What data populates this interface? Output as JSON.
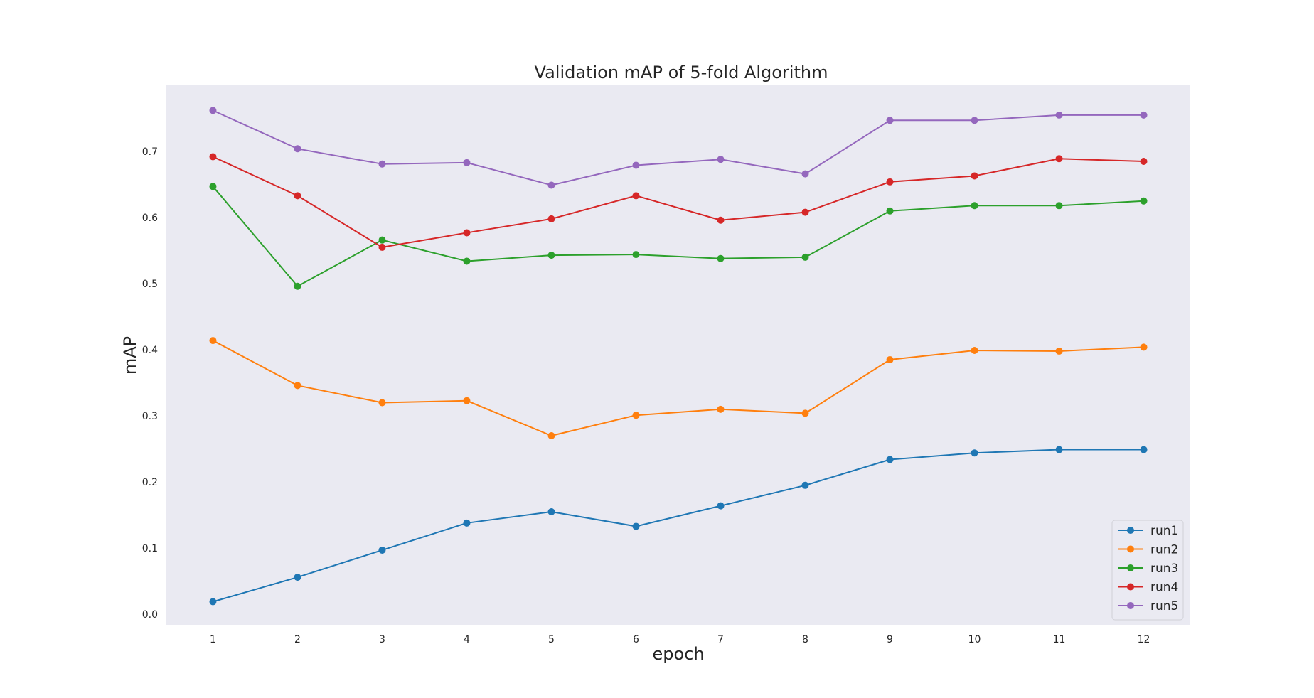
{
  "chart_data": {
    "type": "line",
    "title": "Validation mAP of 5-fold Algorithm",
    "xlabel": "epoch",
    "ylabel": "mAP",
    "x": [
      1,
      2,
      3,
      4,
      5,
      6,
      7,
      8,
      9,
      10,
      11,
      12
    ],
    "x_tick_labels": [
      "1",
      "2",
      "3",
      "4",
      "5",
      "6",
      "7",
      "8",
      "9",
      "10",
      "11",
      "12"
    ],
    "y_ticks": [
      0.0,
      0.1,
      0.2,
      0.3,
      0.4,
      0.5,
      0.6,
      0.7
    ],
    "y_tick_labels": [
      "0.0",
      "0.1",
      "0.2",
      "0.3",
      "0.4",
      "0.5",
      "0.6",
      "0.7"
    ],
    "xlim": [
      0.45,
      12.55
    ],
    "ylim": [
      -0.017,
      0.8
    ],
    "grid": false,
    "legend_position": "bottom-right",
    "background_color": "#eaeaf2",
    "series": [
      {
        "name": "run1",
        "color": "#1f77b4",
        "values": [
          0.019,
          0.056,
          0.097,
          0.138,
          0.155,
          0.133,
          0.164,
          0.195,
          0.234,
          0.244,
          0.249,
          0.249
        ]
      },
      {
        "name": "run2",
        "color": "#ff7f0e",
        "values": [
          0.414,
          0.346,
          0.32,
          0.323,
          0.27,
          0.301,
          0.31,
          0.304,
          0.385,
          0.399,
          0.398,
          0.404
        ]
      },
      {
        "name": "run3",
        "color": "#2ca02c",
        "values": [
          0.647,
          0.496,
          0.566,
          0.534,
          0.543,
          0.544,
          0.538,
          0.54,
          0.61,
          0.618,
          0.618,
          0.625
        ]
      },
      {
        "name": "run4",
        "color": "#d62728",
        "values": [
          0.692,
          0.633,
          0.555,
          0.577,
          0.598,
          0.633,
          0.596,
          0.608,
          0.654,
          0.663,
          0.689,
          0.685
        ]
      },
      {
        "name": "run5",
        "color": "#9467bd",
        "values": [
          0.762,
          0.704,
          0.681,
          0.683,
          0.649,
          0.679,
          0.688,
          0.666,
          0.747,
          0.747,
          0.755,
          0.755
        ]
      }
    ]
  }
}
